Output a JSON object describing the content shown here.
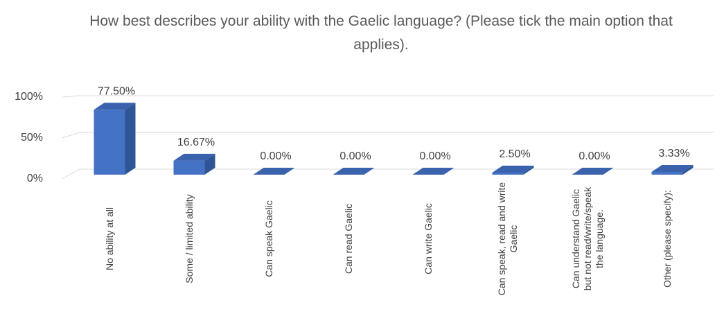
{
  "chart_data": {
    "type": "bar3d",
    "title": "How best describes your ability with the Gaelic language? (Please tick the main option that applies).",
    "categories": [
      "No ability at all",
      "Some / limited ability",
      "Can speak Gaelic",
      "Can read Gaelic",
      "Can write Gaelic",
      "Can speak, read and write Gaelic",
      "Can understand Gaelic but not read/write/speak the language.",
      "Other (please specify):"
    ],
    "values": [
      77.5,
      16.67,
      0,
      0,
      0,
      2.5,
      0,
      3.33
    ],
    "value_labels": [
      "77.50%",
      "16.67%",
      "0.00%",
      "0.00%",
      "0.00%",
      "2.50%",
      "0.00%",
      "3.33%"
    ],
    "color": "#4472c4",
    "ylim": [
      0,
      100
    ],
    "yticks": [
      {
        "value": 0,
        "label": "0%"
      },
      {
        "value": 50,
        "label": "50%"
      },
      {
        "value": 100,
        "label": "100%"
      }
    ],
    "grid": true
  }
}
